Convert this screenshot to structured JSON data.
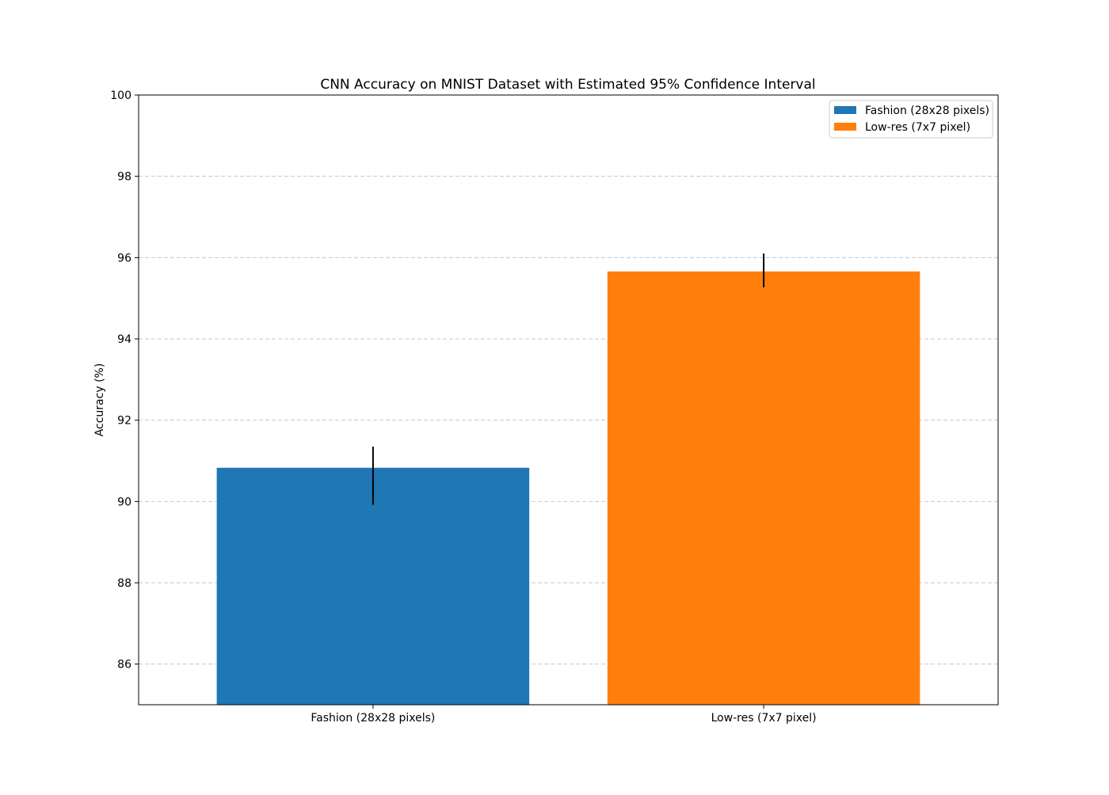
{
  "chart_data": {
    "type": "bar",
    "title": "CNN Accuracy on MNIST Dataset with Estimated 95% Confidence Interval",
    "xlabel": "",
    "ylabel": "Accuracy (%)",
    "ylim": [
      85,
      100
    ],
    "yticks": [
      86,
      88,
      90,
      92,
      94,
      96,
      98,
      100
    ],
    "grid": "y-dashed",
    "legend_position": "top-right",
    "categories": [
      "Fashion (28x28 pixels)",
      "Low-res (7x7 pixel)"
    ],
    "values": [
      90.83,
      95.66
    ],
    "error_low": [
      89.92,
      95.27
    ],
    "error_high": [
      91.35,
      96.1
    ],
    "colors": [
      "#1f77b4",
      "#ff7f0e"
    ],
    "legend": [
      "Fashion (28x28 pixels)",
      "Low-res (7x7 pixel)"
    ]
  }
}
